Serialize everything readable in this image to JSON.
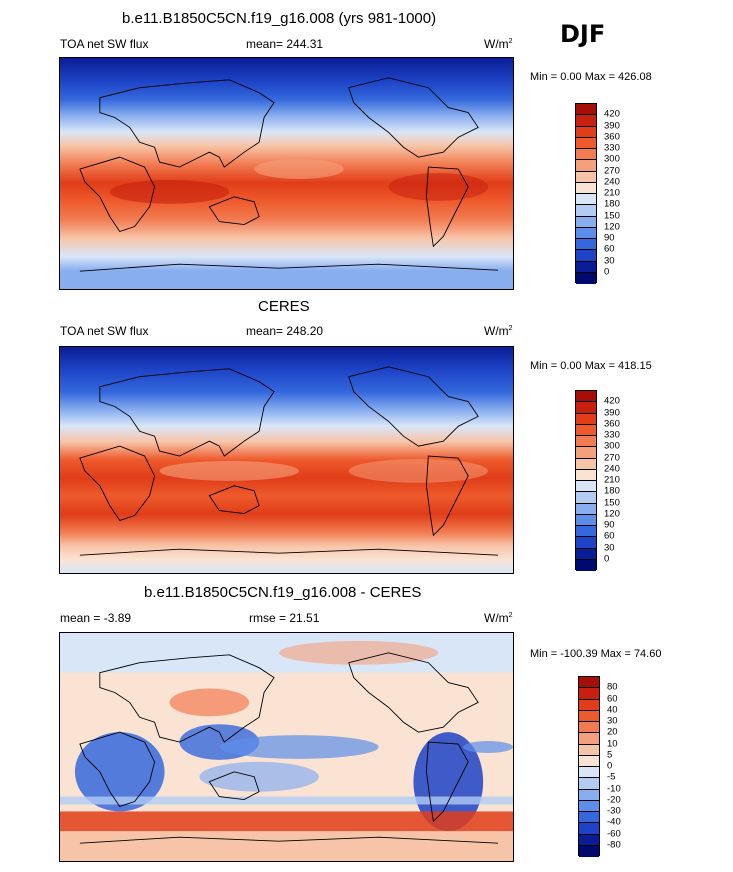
{
  "season": "DJF",
  "panels": [
    {
      "title": "b.e11.B1850C5CN.f19_g16.008 (yrs 981-1000)",
      "left_label": "TOA net SW flux",
      "center_label": "mean= 244.31",
      "units": "W/m",
      "units_sup": "2",
      "minmax": "Min =   0.00 Max = 426.08",
      "levels": [
        "420",
        "390",
        "360",
        "330",
        "300",
        "270",
        "240",
        "210",
        "180",
        "150",
        "120",
        "90",
        "60",
        "30",
        "0"
      ],
      "colors": [
        "#a50f08",
        "#c8200e",
        "#e03d18",
        "#ee5a2c",
        "#f27c52",
        "#f5a07d",
        "#f8c4a8",
        "#fbe3d3",
        "#d9e6f8",
        "#b2ccf4",
        "#89aef0",
        "#5d8eea",
        "#3468dc",
        "#1d43c6",
        "#0a1d96",
        "#000a6e"
      ]
    },
    {
      "title": "CERES",
      "left_label": "TOA net SW flux",
      "center_label": "mean= 248.20",
      "units": "W/m",
      "units_sup": "2",
      "minmax": "Min =   0.00 Max = 418.15",
      "levels": [
        "420",
        "390",
        "360",
        "330",
        "300",
        "270",
        "240",
        "210",
        "180",
        "150",
        "120",
        "90",
        "60",
        "30",
        "0"
      ],
      "colors": [
        "#a50f08",
        "#c8200e",
        "#e03d18",
        "#ee5a2c",
        "#f27c52",
        "#f5a07d",
        "#f8c4a8",
        "#fbe3d3",
        "#d9e6f8",
        "#b2ccf4",
        "#89aef0",
        "#5d8eea",
        "#3468dc",
        "#1d43c6",
        "#0a1d96",
        "#000a6e"
      ]
    },
    {
      "title": "b.e11.B1850C5CN.f19_g16.008 - CERES",
      "left_label": "mean =  -3.89",
      "center_label": "rmse =  21.51",
      "units": "W/m",
      "units_sup": "2",
      "minmax": "Min = -100.39 Max =  74.60",
      "levels": [
        "80",
        "60",
        "40",
        "30",
        "20",
        "10",
        "5",
        "0",
        "-5",
        "-10",
        "-20",
        "-30",
        "-40",
        "-60",
        "-80"
      ],
      "colors": [
        "#a50f08",
        "#c8200e",
        "#e03d18",
        "#ee5a2c",
        "#f27c52",
        "#f5a07d",
        "#f8c4a8",
        "#fbe3d3",
        "#d9e6f8",
        "#b2ccf4",
        "#89aef0",
        "#5d8eea",
        "#3468dc",
        "#1d43c6",
        "#0a1d96",
        "#000a6e"
      ]
    }
  ]
}
